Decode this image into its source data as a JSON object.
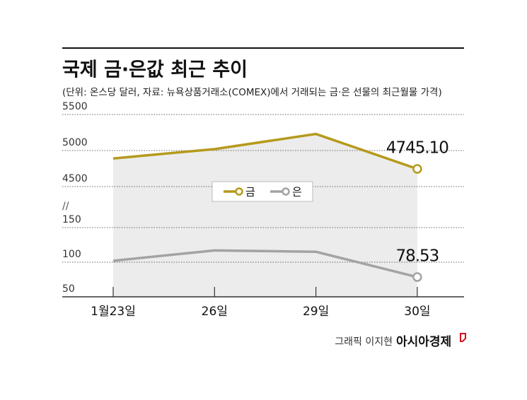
{
  "title": "국제 금·은값 최근 추이",
  "subtitle": "(단위: 온스당 달러, 자료: 뉴욕상품거래소(COMEX)에서 거래되는 금·은 선물의 최근월물 가격)",
  "credit": "그래픽 이지현",
  "brand": "아시아경제",
  "chart_data": {
    "type": "line",
    "categories": [
      "1월23일",
      "26일",
      "29일",
      "30일"
    ],
    "series": [
      {
        "name": "금",
        "color": "#b59a1c",
        "axis": "y",
        "values": [
          4890,
          5020,
          5230,
          4745.1
        ],
        "value_labels": [
          null,
          null,
          null,
          "4745.10"
        ]
      },
      {
        "name": "은",
        "color": "#a3a3a3",
        "axis": "y2",
        "values": [
          102,
          117,
          115,
          78.53
        ],
        "value_labels": [
          null,
          null,
          null,
          "78.53"
        ]
      }
    ],
    "ylim": [
      4500,
      5500
    ],
    "yticks": [
      4500,
      5000,
      5500
    ],
    "y2lim": [
      50,
      150
    ],
    "y2ticks": [
      50,
      100,
      150
    ],
    "grid": true
  }
}
